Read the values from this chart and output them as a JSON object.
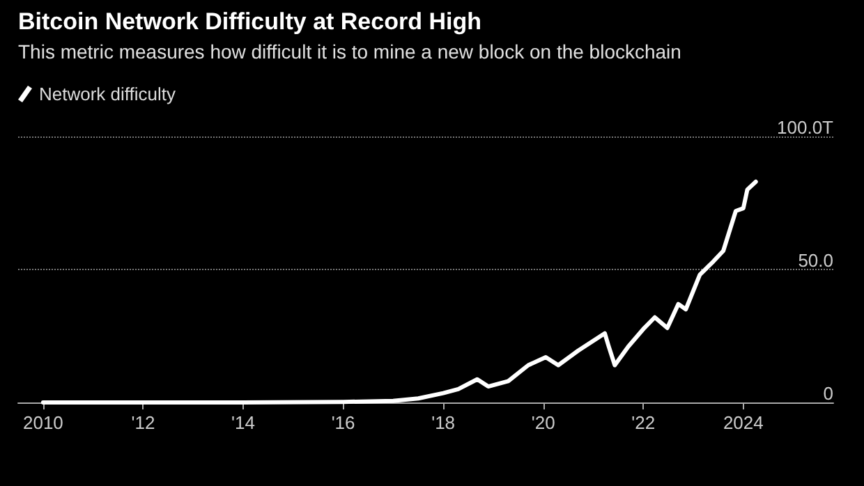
{
  "chart_data": {
    "type": "line",
    "title": "Bitcoin Network Difficulty at Record High",
    "subtitle": "This metric measures how difficult it is to mine a new block on the blockchain",
    "series": [
      {
        "name": "Network difficulty",
        "color": "#ffffff",
        "x": [
          2010,
          2012,
          2014,
          2016,
          2017,
          2017.5,
          2018,
          2018.3,
          2018.68,
          2018.9,
          2019.3,
          2019.7,
          2020.05,
          2020.3,
          2020.7,
          2021.23,
          2021.3,
          2021.43,
          2021.7,
          2022.02,
          2022.23,
          2022.48,
          2022.7,
          2022.85,
          2023.13,
          2023.4,
          2023.6,
          2023.85,
          2024,
          2024.08,
          2024.25
        ],
        "values": [
          0,
          0,
          0,
          0.2,
          0.6,
          1.5,
          3.5,
          5,
          8.7,
          6,
          8,
          14,
          17,
          14,
          19.5,
          26,
          21.6,
          14,
          21,
          28,
          32,
          28,
          37,
          35,
          48,
          53,
          57,
          72,
          73,
          80,
          83
        ]
      }
    ],
    "xlim": [
      2009.5,
      2025.8
    ],
    "xticks": [
      2010,
      {
        "value": 2012,
        "label": "'12"
      },
      {
        "value": 2014,
        "label": "'14"
      },
      {
        "value": 2016,
        "label": "'16"
      },
      {
        "value": 2018,
        "label": "'18"
      },
      {
        "value": 2020,
        "label": "'20"
      },
      {
        "value": 2022,
        "label": "'22"
      },
      2024
    ],
    "ylim": [
      0,
      100
    ],
    "yticks": [
      0,
      {
        "value": 50,
        "label": "50.0"
      },
      {
        "value": 100,
        "label": "100.0T"
      }
    ],
    "grid": "y",
    "legend": "top left",
    "marker": "none",
    "line_style": "solid"
  }
}
